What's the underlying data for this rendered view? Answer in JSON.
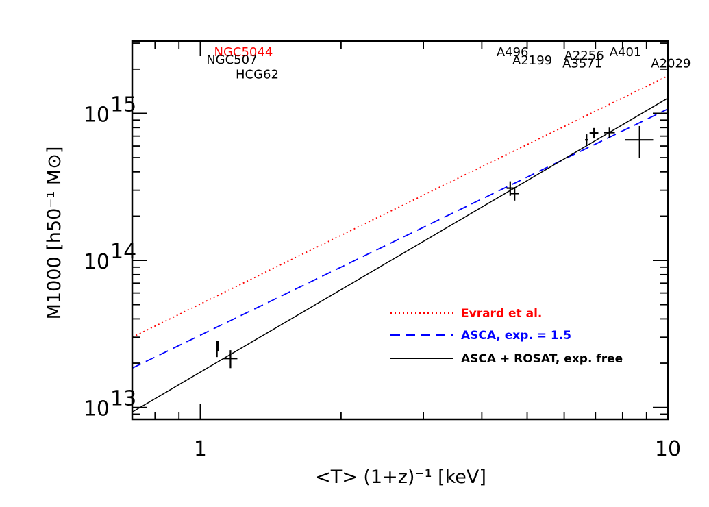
{
  "chart_data": {
    "type": "scatter",
    "xlabel": "<T> (1+z)⁻¹ [keV]",
    "ylabel": "M1000 [h50⁻¹ M⊙]",
    "xscale": "log",
    "yscale": "log",
    "xlim": [
      0.715,
      10.0
    ],
    "ylim": [
      8300000000000.0,
      3100000000000000.0
    ],
    "x_ticks": [
      {
        "value": 1,
        "label": "1"
      },
      {
        "value": 10,
        "label": "10"
      }
    ],
    "y_ticks": [
      {
        "value": 10000000000000.0,
        "label": "10",
        "exp": "13"
      },
      {
        "value": 100000000000000.0,
        "label": "10",
        "exp": "14"
      },
      {
        "value": 1000000000000000.0,
        "label": "10",
        "exp": "15"
      }
    ],
    "points": [
      {
        "x": 1.085,
        "y": 24500000000000.0,
        "xerr": [
          0.005,
          0.005
        ],
        "yerr": [
          2500000000000.0,
          4000000000000.0
        ]
      },
      {
        "x": 1.09,
        "y": 26000000000000.0,
        "xerr": [
          0.005,
          0.005
        ],
        "yerr": [
          2000000000000.0,
          2500000000000.0
        ]
      },
      {
        "x": 1.16,
        "y": 21500000000000.0,
        "xerr": [
          0.04,
          0.04
        ],
        "yerr": [
          3000000000000.0,
          3000000000000.0
        ]
      },
      {
        "x": 4.6,
        "y": 310000000000000.0,
        "xerr": [
          0.08,
          0.08
        ],
        "yerr": [
          35000000000000.0,
          35000000000000.0
        ]
      },
      {
        "x": 4.7,
        "y": 285000000000000.0,
        "xerr": [
          0.1,
          0.1
        ],
        "yerr": [
          30000000000000.0,
          30000000000000.0
        ]
      },
      {
        "x": 6.7,
        "y": 660000000000000.0,
        "xerr": [
          0.05,
          0.05
        ],
        "yerr": [
          60000000000000.0,
          60000000000000.0
        ]
      },
      {
        "x": 6.95,
        "y": 735000000000000.0,
        "xerr": [
          0.15,
          0.15
        ],
        "yerr": [
          60000000000000.0,
          60000000000000.0
        ]
      },
      {
        "x": 7.5,
        "y": 740000000000000.0,
        "xerr": [
          0.2,
          0.2
        ],
        "yerr": [
          60000000000000.0,
          60000000000000.0
        ]
      },
      {
        "x": 8.7,
        "y": 660000000000000.0,
        "xerr": [
          0.6,
          0.6
        ],
        "yerr": [
          160000000000000.0,
          160000000000000.0
        ]
      }
    ],
    "series": [
      {
        "name": "Evrard et al.",
        "color": "#ff0000",
        "style": "dotted",
        "x": [
          0.715,
          10.0
        ],
        "y": [
          30000000000000.0,
          1800000000000000.0
        ]
      },
      {
        "name": "ASCA, exp. = 1.5",
        "color": "#0000ff",
        "style": "dashed",
        "x": [
          0.715,
          10.0
        ],
        "y": [
          18500000000000.0,
          1070000000000000.0
        ]
      },
      {
        "name": "ASCA + ROSAT, exp. free",
        "color": "#000000",
        "style": "solid",
        "x": [
          0.715,
          10.0
        ],
        "y": [
          9300000000000.0,
          1270000000000000.0
        ]
      }
    ],
    "annotations": [
      {
        "text": "NGC5044",
        "color": "#ff0000",
        "x": 1.07,
        "y": 2450000000000000.0
      },
      {
        "text": "NGC507",
        "color": "#000000",
        "x": 1.03,
        "y": 2170000000000000.0
      },
      {
        "text": "HCG62",
        "color": "#000000",
        "x": 1.19,
        "y": 1730000000000000.0
      },
      {
        "text": "A496",
        "color": "#000000",
        "x": 4.3,
        "y": 2450000000000000.0
      },
      {
        "text": "A2199",
        "color": "#000000",
        "x": 4.65,
        "y": 2150000000000000.0
      },
      {
        "text": "A2256",
        "color": "#000000",
        "x": 6.0,
        "y": 2320000000000000.0
      },
      {
        "text": "A401",
        "color": "#000000",
        "x": 7.5,
        "y": 2450000000000000.0
      },
      {
        "text": "A3571",
        "color": "#000000",
        "x": 5.95,
        "y": 2050000000000000.0
      },
      {
        "text": "A2029",
        "color": "#000000",
        "x": 9.2,
        "y": 2050000000000000.0
      }
    ],
    "legend": "bottom-right"
  }
}
